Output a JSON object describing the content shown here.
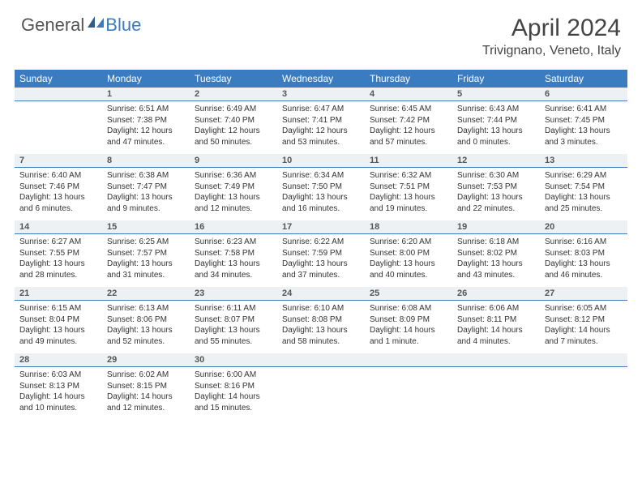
{
  "logo": {
    "textA": "General",
    "textB": "Blue"
  },
  "title": "April 2024",
  "location": "Trivignano, Veneto, Italy",
  "colors": {
    "brand": "#3b7bbf",
    "dayHeaderBg": "#eef1f3",
    "text": "#333333"
  },
  "weekdays": [
    "Sunday",
    "Monday",
    "Tuesday",
    "Wednesday",
    "Thursday",
    "Friday",
    "Saturday"
  ],
  "weeks": [
    [
      null,
      {
        "n": "1",
        "sr": "6:51 AM",
        "ss": "7:38 PM",
        "dl": "12 hours and 47 minutes."
      },
      {
        "n": "2",
        "sr": "6:49 AM",
        "ss": "7:40 PM",
        "dl": "12 hours and 50 minutes."
      },
      {
        "n": "3",
        "sr": "6:47 AM",
        "ss": "7:41 PM",
        "dl": "12 hours and 53 minutes."
      },
      {
        "n": "4",
        "sr": "6:45 AM",
        "ss": "7:42 PM",
        "dl": "12 hours and 57 minutes."
      },
      {
        "n": "5",
        "sr": "6:43 AM",
        "ss": "7:44 PM",
        "dl": "13 hours and 0 minutes."
      },
      {
        "n": "6",
        "sr": "6:41 AM",
        "ss": "7:45 PM",
        "dl": "13 hours and 3 minutes."
      }
    ],
    [
      {
        "n": "7",
        "sr": "6:40 AM",
        "ss": "7:46 PM",
        "dl": "13 hours and 6 minutes."
      },
      {
        "n": "8",
        "sr": "6:38 AM",
        "ss": "7:47 PM",
        "dl": "13 hours and 9 minutes."
      },
      {
        "n": "9",
        "sr": "6:36 AM",
        "ss": "7:49 PM",
        "dl": "13 hours and 12 minutes."
      },
      {
        "n": "10",
        "sr": "6:34 AM",
        "ss": "7:50 PM",
        "dl": "13 hours and 16 minutes."
      },
      {
        "n": "11",
        "sr": "6:32 AM",
        "ss": "7:51 PM",
        "dl": "13 hours and 19 minutes."
      },
      {
        "n": "12",
        "sr": "6:30 AM",
        "ss": "7:53 PM",
        "dl": "13 hours and 22 minutes."
      },
      {
        "n": "13",
        "sr": "6:29 AM",
        "ss": "7:54 PM",
        "dl": "13 hours and 25 minutes."
      }
    ],
    [
      {
        "n": "14",
        "sr": "6:27 AM",
        "ss": "7:55 PM",
        "dl": "13 hours and 28 minutes."
      },
      {
        "n": "15",
        "sr": "6:25 AM",
        "ss": "7:57 PM",
        "dl": "13 hours and 31 minutes."
      },
      {
        "n": "16",
        "sr": "6:23 AM",
        "ss": "7:58 PM",
        "dl": "13 hours and 34 minutes."
      },
      {
        "n": "17",
        "sr": "6:22 AM",
        "ss": "7:59 PM",
        "dl": "13 hours and 37 minutes."
      },
      {
        "n": "18",
        "sr": "6:20 AM",
        "ss": "8:00 PM",
        "dl": "13 hours and 40 minutes."
      },
      {
        "n": "19",
        "sr": "6:18 AM",
        "ss": "8:02 PM",
        "dl": "13 hours and 43 minutes."
      },
      {
        "n": "20",
        "sr": "6:16 AM",
        "ss": "8:03 PM",
        "dl": "13 hours and 46 minutes."
      }
    ],
    [
      {
        "n": "21",
        "sr": "6:15 AM",
        "ss": "8:04 PM",
        "dl": "13 hours and 49 minutes."
      },
      {
        "n": "22",
        "sr": "6:13 AM",
        "ss": "8:06 PM",
        "dl": "13 hours and 52 minutes."
      },
      {
        "n": "23",
        "sr": "6:11 AM",
        "ss": "8:07 PM",
        "dl": "13 hours and 55 minutes."
      },
      {
        "n": "24",
        "sr": "6:10 AM",
        "ss": "8:08 PM",
        "dl": "13 hours and 58 minutes."
      },
      {
        "n": "25",
        "sr": "6:08 AM",
        "ss": "8:09 PM",
        "dl": "14 hours and 1 minute."
      },
      {
        "n": "26",
        "sr": "6:06 AM",
        "ss": "8:11 PM",
        "dl": "14 hours and 4 minutes."
      },
      {
        "n": "27",
        "sr": "6:05 AM",
        "ss": "8:12 PM",
        "dl": "14 hours and 7 minutes."
      }
    ],
    [
      {
        "n": "28",
        "sr": "6:03 AM",
        "ss": "8:13 PM",
        "dl": "14 hours and 10 minutes."
      },
      {
        "n": "29",
        "sr": "6:02 AM",
        "ss": "8:15 PM",
        "dl": "14 hours and 12 minutes."
      },
      {
        "n": "30",
        "sr": "6:00 AM",
        "ss": "8:16 PM",
        "dl": "14 hours and 15 minutes."
      },
      null,
      null,
      null,
      null
    ]
  ],
  "labels": {
    "sunrise": "Sunrise:",
    "sunset": "Sunset:",
    "daylight": "Daylight:"
  }
}
